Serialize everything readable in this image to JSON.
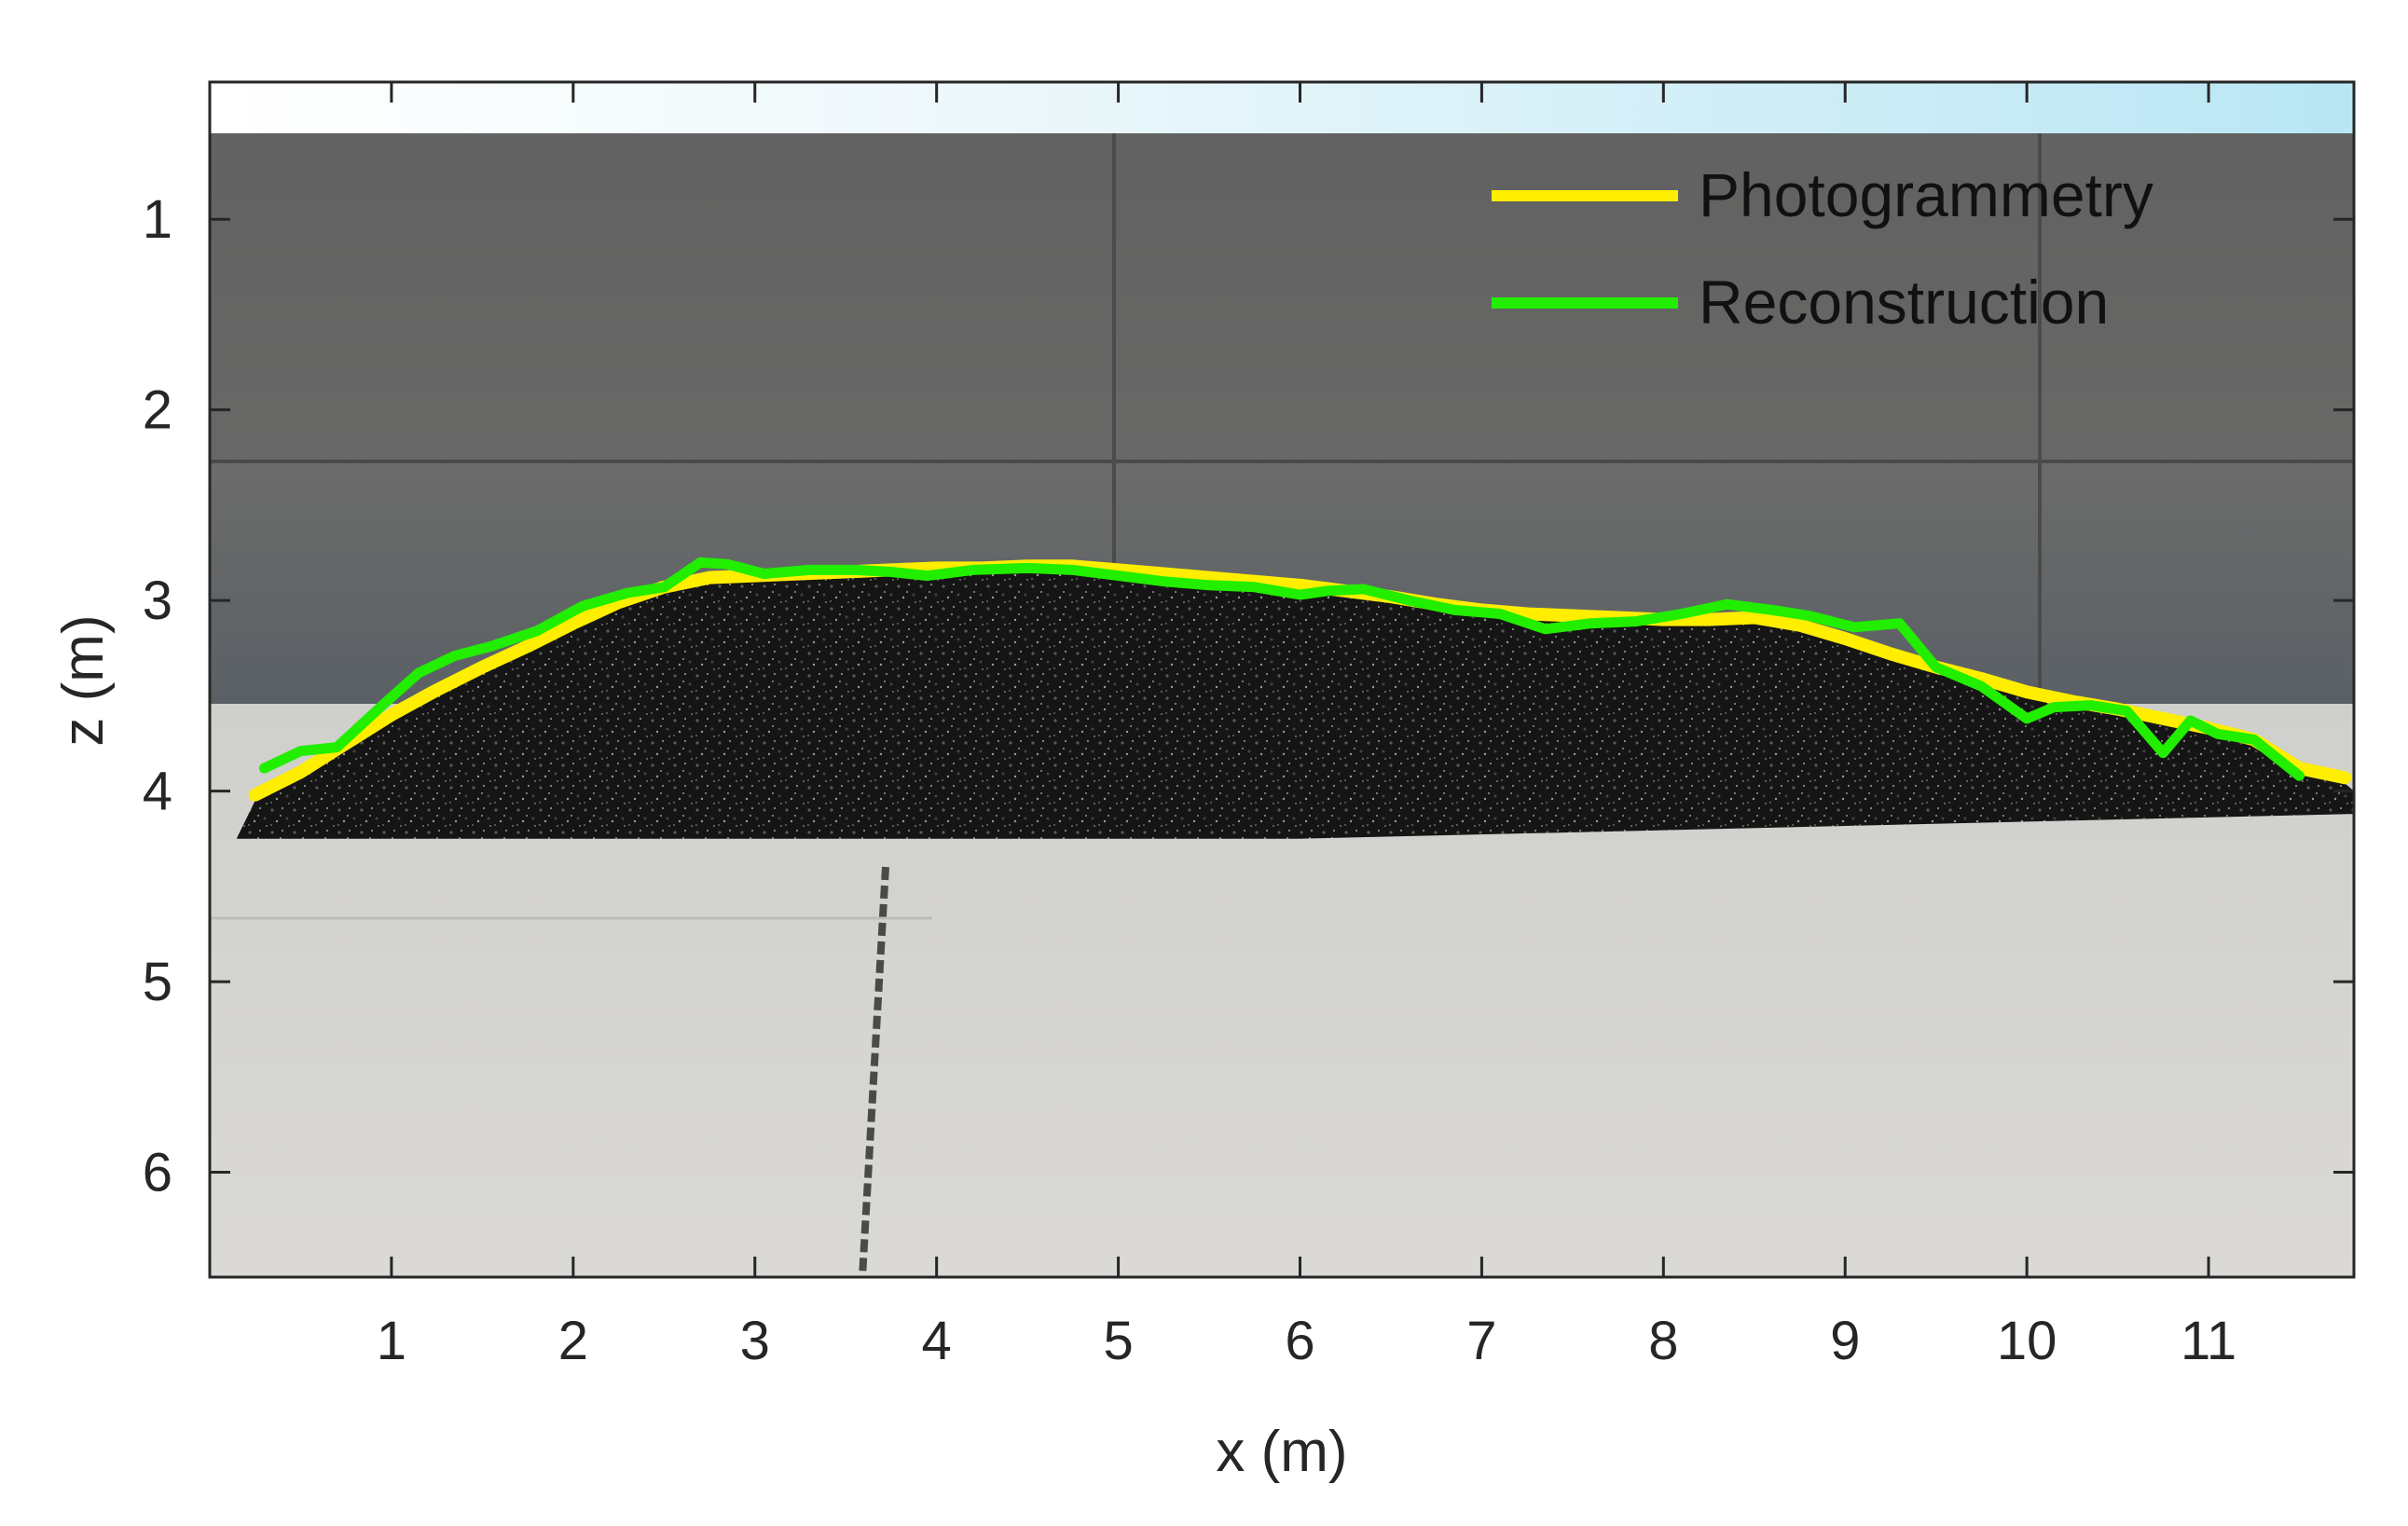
{
  "chart_data": {
    "type": "line",
    "xlabel": "x (m)",
    "ylabel": "z (m)",
    "xlim": [
      0,
      11.8
    ],
    "ylim": [
      0.28,
      6.55
    ],
    "y_reversed": true,
    "x_ticks": [
      1,
      2,
      3,
      4,
      5,
      6,
      7,
      8,
      9,
      10,
      11
    ],
    "y_ticks": [
      1,
      2,
      3,
      4,
      5,
      6
    ],
    "grid": false,
    "legend_position": "top-right",
    "background": "photograph of a dark aggregate stockpile in front of a concrete wall",
    "series": [
      {
        "name": "Photogrammetry",
        "color": "#FFEE00",
        "x": [
          0.25,
          0.5,
          0.75,
          1.0,
          1.25,
          1.5,
          1.75,
          2.0,
          2.25,
          2.5,
          2.75,
          3.0,
          3.25,
          3.5,
          3.75,
          4.0,
          4.25,
          4.5,
          4.75,
          5.0,
          5.25,
          5.5,
          5.75,
          6.0,
          6.25,
          6.5,
          6.75,
          7.0,
          7.25,
          7.5,
          7.75,
          8.0,
          8.25,
          8.5,
          8.75,
          9.0,
          9.25,
          9.5,
          9.75,
          10.0,
          10.25,
          10.5,
          10.75,
          11.0,
          11.25,
          11.5,
          11.75
        ],
        "y": [
          4.02,
          3.9,
          3.75,
          3.6,
          3.47,
          3.35,
          3.24,
          3.12,
          3.01,
          2.93,
          2.88,
          2.87,
          2.86,
          2.85,
          2.84,
          2.83,
          2.83,
          2.82,
          2.82,
          2.84,
          2.86,
          2.88,
          2.9,
          2.92,
          2.95,
          2.98,
          3.02,
          3.05,
          3.07,
          3.08,
          3.09,
          3.1,
          3.1,
          3.09,
          3.13,
          3.2,
          3.28,
          3.35,
          3.41,
          3.48,
          3.53,
          3.57,
          3.62,
          3.67,
          3.73,
          3.88,
          3.93
        ]
      },
      {
        "name": "Reconstruction",
        "color": "#22EE00",
        "x": [
          0.3,
          0.5,
          0.7,
          0.95,
          1.15,
          1.35,
          1.55,
          1.8,
          2.05,
          2.3,
          2.5,
          2.7,
          2.85,
          3.05,
          3.3,
          3.55,
          3.75,
          3.95,
          4.2,
          4.5,
          4.75,
          5.0,
          5.25,
          5.5,
          5.75,
          6.0,
          6.15,
          6.35,
          6.6,
          6.85,
          7.1,
          7.35,
          7.6,
          7.85,
          8.1,
          8.35,
          8.6,
          8.8,
          9.05,
          9.3,
          9.5,
          9.75,
          10.0,
          10.15,
          10.35,
          10.55,
          10.75,
          10.9,
          11.05,
          11.25,
          11.5
        ],
        "y": [
          3.88,
          3.79,
          3.77,
          3.55,
          3.38,
          3.29,
          3.24,
          3.16,
          3.03,
          2.96,
          2.93,
          2.8,
          2.81,
          2.86,
          2.84,
          2.84,
          2.85,
          2.87,
          2.84,
          2.83,
          2.84,
          2.87,
          2.9,
          2.92,
          2.93,
          2.97,
          2.95,
          2.94,
          3.0,
          3.05,
          3.07,
          3.15,
          3.12,
          3.11,
          3.07,
          3.02,
          3.05,
          3.08,
          3.14,
          3.12,
          3.35,
          3.45,
          3.62,
          3.56,
          3.55,
          3.58,
          3.8,
          3.63,
          3.7,
          3.73,
          3.92
        ]
      }
    ]
  }
}
